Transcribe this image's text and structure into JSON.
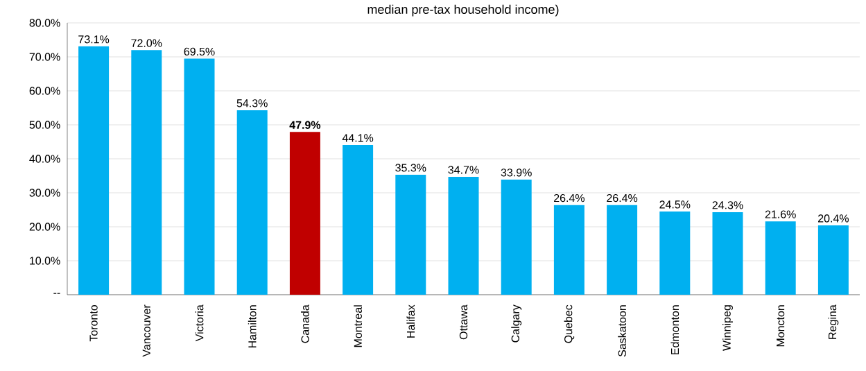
{
  "chart_data": {
    "type": "bar",
    "title": "median pre-tax household income)",
    "categories": [
      "Toronto",
      "Vancouver",
      "Victoria",
      "Hamilton",
      "Canada",
      "Montreal",
      "Halifax",
      "Ottawa",
      "Calgary",
      "Quebec",
      "Saskatoon",
      "Edmonton",
      "Winnipeg",
      "Moncton",
      "Regina"
    ],
    "values": [
      73.1,
      72.0,
      69.5,
      54.3,
      47.9,
      44.1,
      35.3,
      34.7,
      33.9,
      26.4,
      26.4,
      24.5,
      24.3,
      21.6,
      20.4
    ],
    "value_labels": [
      "73.1%",
      "72.0%",
      "69.5%",
      "54.3%",
      "**47.9%**",
      "44.1%",
      "35.3%",
      "34.7%",
      "33.9%",
      "26.4%",
      "26.4%",
      "24.5%",
      "24.3%",
      "21.6%",
      "20.4%"
    ],
    "colors": [
      "#00b0f0",
      "#00b0f0",
      "#00b0f0",
      "#00b0f0",
      "#c00000",
      "#00b0f0",
      "#00b0f0",
      "#00b0f0",
      "#00b0f0",
      "#00b0f0",
      "#00b0f0",
      "#00b0f0",
      "#00b0f0",
      "#00b0f0",
      "#00b0f0"
    ],
    "ylim": [
      0,
      80
    ],
    "yticks": [
      {
        "value": 0,
        "label": "--"
      },
      {
        "value": 10,
        "label": "10.0%"
      },
      {
        "value": 20,
        "label": "20.0%"
      },
      {
        "value": 30,
        "label": "30.0%"
      },
      {
        "value": 40,
        "label": "40.0%"
      },
      {
        "value": 50,
        "label": "50.0%"
      },
      {
        "value": 60,
        "label": "60.0%"
      },
      {
        "value": 70,
        "label": "70.0%"
      },
      {
        "value": 80,
        "label": "80.0%"
      }
    ],
    "grid": "y"
  }
}
